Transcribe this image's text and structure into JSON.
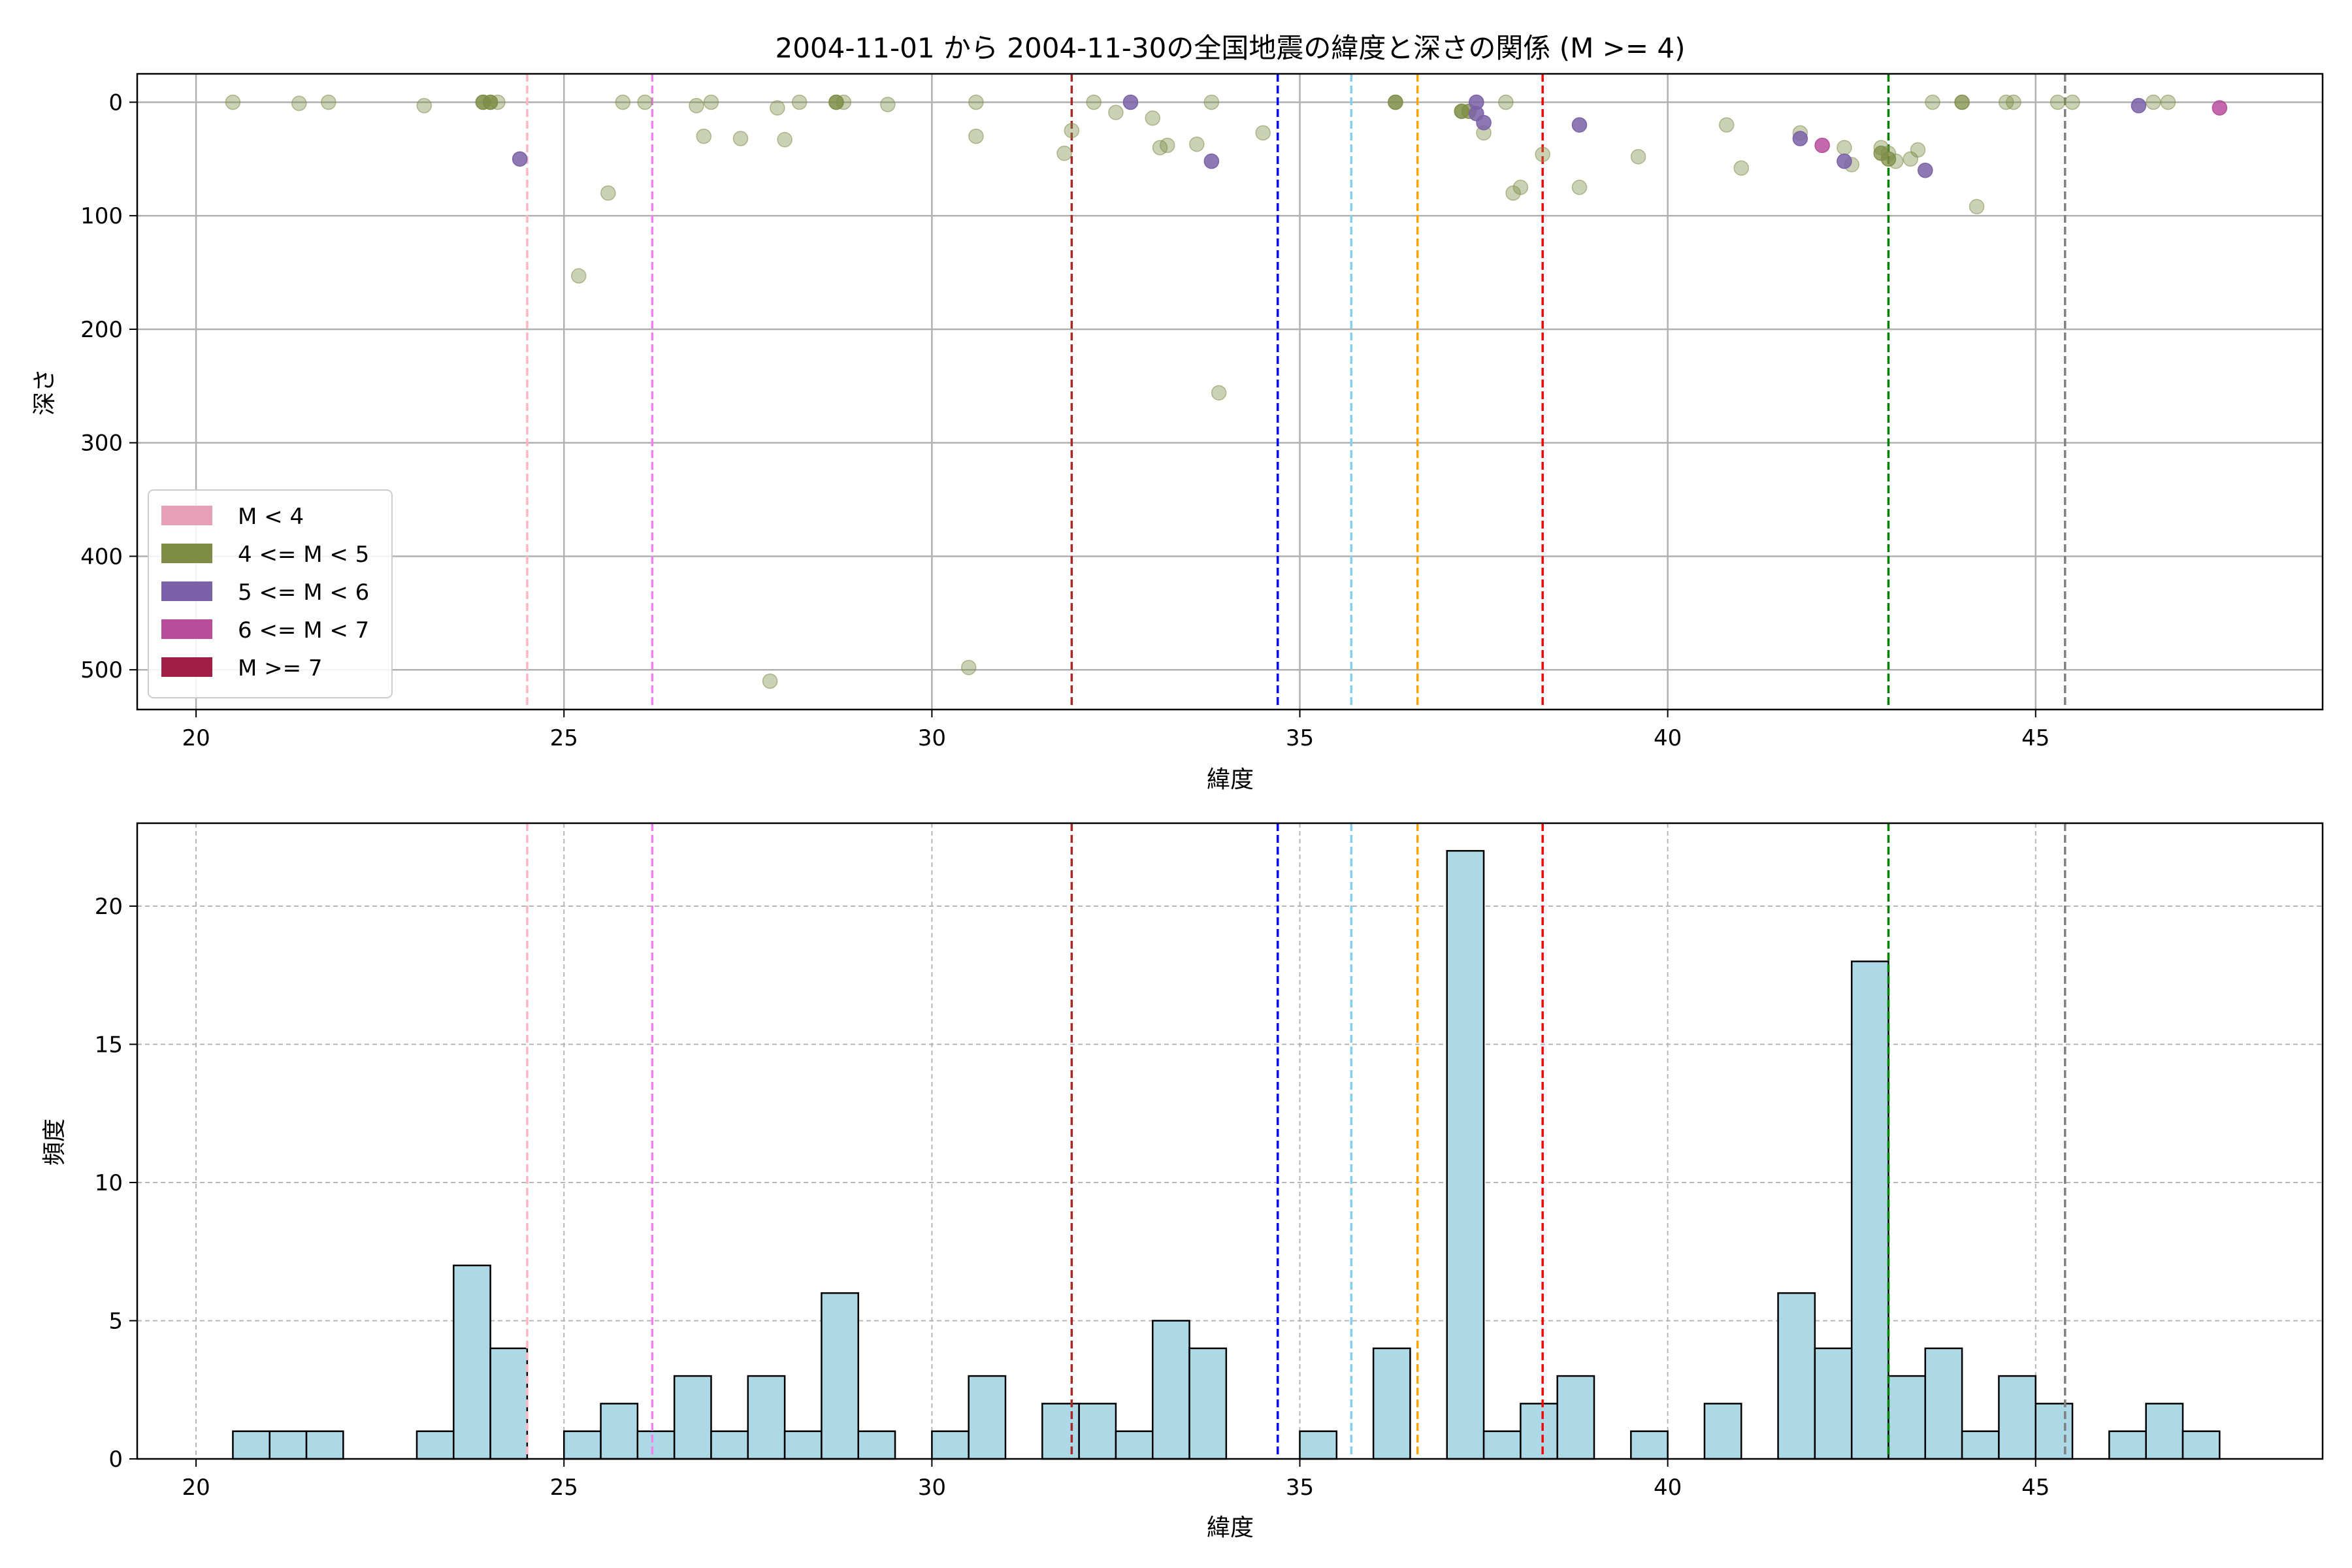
{
  "chart_data": [
    {
      "type": "scatter",
      "title": "2004-11-01 から 2004-11-30の全国地震の緯度と深さの関係 (M >= 4)",
      "xlabel": "緯度",
      "ylabel": "深さ",
      "xlim": [
        19.2,
        48.9
      ],
      "ylim": [
        535,
        -25
      ],
      "y_inverted": true,
      "xticks": [
        20,
        25,
        30,
        35,
        40,
        45
      ],
      "yticks": [
        0,
        100,
        200,
        300,
        400,
        500
      ],
      "grid": true,
      "legend_position": "lower-left",
      "legend": [
        {
          "label": "M < 4",
          "color": "#e8a0b8"
        },
        {
          "label": "4 <= M < 5",
          "color": "#7e8c45"
        },
        {
          "label": "5 <= M < 6",
          "color": "#7b62a8"
        },
        {
          "label": "6 <= M < 7",
          "color": "#b84d9c"
        },
        {
          "label": "M >= 7",
          "color": "#a01d45"
        }
      ],
      "series": [
        {
          "magnitude_class": "4 <= M < 5",
          "color": "#7e8c45",
          "opacity": 0.4,
          "points": [
            [
              20.5,
              0
            ],
            [
              21.4,
              1
            ],
            [
              21.8,
              0
            ],
            [
              23.1,
              3
            ],
            [
              23.9,
              0
            ],
            [
              24.0,
              0
            ],
            [
              24.1,
              0
            ],
            [
              25.2,
              153
            ],
            [
              25.6,
              80
            ],
            [
              25.8,
              0
            ],
            [
              26.1,
              0
            ],
            [
              26.8,
              3
            ],
            [
              26.9,
              30
            ],
            [
              27.0,
              0
            ],
            [
              27.4,
              32
            ],
            [
              27.8,
              510
            ],
            [
              27.9,
              5
            ],
            [
              28.0,
              33
            ],
            [
              28.2,
              0
            ],
            [
              28.7,
              0
            ],
            [
              28.8,
              0
            ],
            [
              29.4,
              2
            ],
            [
              30.5,
              498
            ],
            [
              30.6,
              0
            ],
            [
              30.6,
              30
            ],
            [
              31.8,
              45
            ],
            [
              31.9,
              25
            ],
            [
              32.2,
              0
            ],
            [
              32.5,
              9
            ],
            [
              33.0,
              14
            ],
            [
              33.1,
              40
            ],
            [
              33.2,
              38
            ],
            [
              33.6,
              37
            ],
            [
              33.8,
              0
            ],
            [
              33.9,
              256
            ],
            [
              34.5,
              27
            ],
            [
              36.3,
              0
            ],
            [
              37.2,
              8
            ],
            [
              37.5,
              27
            ],
            [
              37.8,
              0
            ],
            [
              37.9,
              80
            ],
            [
              38.0,
              75
            ],
            [
              38.3,
              46
            ],
            [
              38.8,
              75
            ],
            [
              39.6,
              48
            ],
            [
              40.8,
              20
            ],
            [
              41.0,
              58
            ],
            [
              41.8,
              27
            ],
            [
              42.4,
              40
            ],
            [
              42.5,
              55
            ],
            [
              42.9,
              40
            ],
            [
              43.0,
              45
            ],
            [
              43.1,
              52
            ],
            [
              43.3,
              50
            ],
            [
              43.4,
              42
            ],
            [
              43.6,
              0
            ],
            [
              44.2,
              92
            ],
            [
              44.6,
              0
            ],
            [
              44.7,
              0
            ],
            [
              45.3,
              0
            ],
            [
              45.5,
              0
            ],
            [
              46.6,
              0
            ],
            [
              46.8,
              0
            ]
          ]
        },
        {
          "magnitude_class": "4 <= M < 5",
          "color": "#7e8c45",
          "opacity": 0.75,
          "points": [
            [
              23.9,
              0
            ],
            [
              24.0,
              0
            ],
            [
              28.7,
              0
            ],
            [
              36.3,
              0
            ],
            [
              37.2,
              8
            ],
            [
              37.3,
              8
            ],
            [
              42.9,
              45
            ],
            [
              43.0,
              50
            ],
            [
              44.0,
              0
            ]
          ]
        },
        {
          "magnitude_class": "5 <= M < 6",
          "color": "#7b62a8",
          "opacity": 0.85,
          "points": [
            [
              24.4,
              50
            ],
            [
              32.7,
              0
            ],
            [
              33.8,
              52
            ],
            [
              37.4,
              0
            ],
            [
              37.4,
              10
            ],
            [
              37.5,
              18
            ],
            [
              38.8,
              20
            ],
            [
              41.8,
              32
            ],
            [
              42.4,
              52
            ],
            [
              43.5,
              60
            ],
            [
              46.4,
              3
            ]
          ]
        },
        {
          "magnitude_class": "6 <= M < 7",
          "color": "#b84d9c",
          "opacity": 0.85,
          "points": [
            [
              42.1,
              38
            ],
            [
              47.5,
              5
            ]
          ]
        }
      ],
      "vlines": [
        {
          "x": 24.5,
          "color": "#ffb6c1"
        },
        {
          "x": 26.2,
          "color": "#ee82ee"
        },
        {
          "x": 31.9,
          "color": "#a52a2a"
        },
        {
          "x": 34.7,
          "color": "#0000ff"
        },
        {
          "x": 35.7,
          "color": "#87ceeb"
        },
        {
          "x": 36.6,
          "color": "#ffa500"
        },
        {
          "x": 38.3,
          "color": "#ff0000"
        },
        {
          "x": 43.0,
          "color": "#008000"
        },
        {
          "x": 45.4,
          "color": "#808080"
        }
      ]
    },
    {
      "type": "bar",
      "subtype": "histogram",
      "xlabel": "緯度",
      "ylabel": "頻度",
      "xlim": [
        19.2,
        48.9
      ],
      "ylim": [
        0,
        23
      ],
      "xticks": [
        20,
        25,
        30,
        35,
        40,
        45
      ],
      "yticks": [
        0,
        5,
        10,
        15,
        20
      ],
      "grid": true,
      "bar_color": "#add8e6",
      "bin_start": 20.0,
      "bin_width": 0.5,
      "counts": [
        0,
        1,
        1,
        1,
        0,
        0,
        1,
        7,
        4,
        0,
        1,
        2,
        1,
        3,
        1,
        3,
        1,
        6,
        1,
        0,
        1,
        3,
        0,
        2,
        2,
        1,
        5,
        4,
        0,
        0,
        1,
        0,
        4,
        0,
        22,
        1,
        2,
        3,
        0,
        1,
        0,
        2,
        0,
        6,
        4,
        18,
        3,
        4,
        1,
        3,
        2,
        0,
        1,
        2,
        1
      ],
      "vlines": [
        {
          "x": 24.5,
          "color": "#ffb6c1"
        },
        {
          "x": 26.2,
          "color": "#ee82ee"
        },
        {
          "x": 31.9,
          "color": "#a52a2a"
        },
        {
          "x": 34.7,
          "color": "#0000ff"
        },
        {
          "x": 35.7,
          "color": "#87ceeb"
        },
        {
          "x": 36.6,
          "color": "#ffa500"
        },
        {
          "x": 38.3,
          "color": "#ff0000"
        },
        {
          "x": 43.0,
          "color": "#008000"
        },
        {
          "x": 45.4,
          "color": "#808080"
        }
      ]
    }
  ]
}
